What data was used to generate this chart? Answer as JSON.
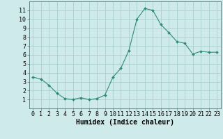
{
  "x": [
    0,
    1,
    2,
    3,
    4,
    5,
    6,
    7,
    8,
    9,
    10,
    11,
    12,
    13,
    14,
    15,
    16,
    17,
    18,
    19,
    20,
    21,
    22,
    23
  ],
  "y": [
    3.5,
    3.3,
    2.6,
    1.7,
    1.1,
    1.0,
    1.2,
    1.0,
    1.1,
    1.5,
    3.5,
    4.5,
    6.5,
    10.0,
    11.2,
    11.0,
    9.4,
    8.5,
    7.5,
    7.3,
    6.1,
    6.4,
    6.3,
    6.3
  ],
  "line_color": "#2e8b7a",
  "marker": "D",
  "marker_size": 2.0,
  "bg_color": "#ceeaea",
  "grid_color": "#aacece",
  "xlabel": "Humidex (Indice chaleur)",
  "xlabel_fontsize": 7,
  "tick_fontsize": 6,
  "xlim": [
    -0.5,
    23.5
  ],
  "ylim": [
    0.0,
    12.0
  ],
  "yticks": [
    1,
    2,
    3,
    4,
    5,
    6,
    7,
    8,
    9,
    10,
    11
  ],
  "xticks": [
    0,
    1,
    2,
    3,
    4,
    5,
    6,
    7,
    8,
    9,
    10,
    11,
    12,
    13,
    14,
    15,
    16,
    17,
    18,
    19,
    20,
    21,
    22,
    23
  ]
}
